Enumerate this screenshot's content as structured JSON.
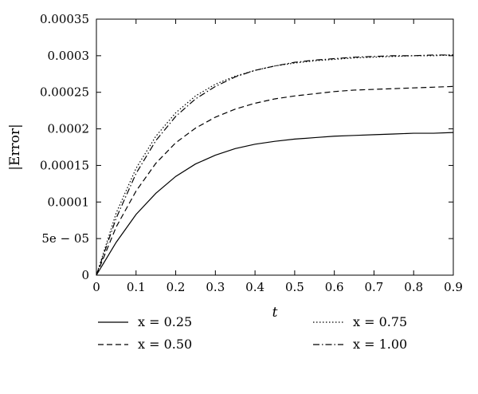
{
  "chart_data": {
    "type": "line",
    "title": "",
    "xlabel": "t",
    "ylabel": "|Error|",
    "xlim": [
      0,
      0.9
    ],
    "ylim": [
      0,
      0.00035
    ],
    "grid": false,
    "legend_position": "bottom",
    "x_ticks": [
      0,
      0.1,
      0.2,
      0.3,
      0.4,
      0.5,
      0.6,
      0.7,
      0.8,
      0.9
    ],
    "x_tick_labels": [
      "0",
      "0.1",
      "0.2",
      "0.3",
      "0.4",
      "0.5",
      "0.6",
      "0.7",
      "0.8",
      "0.9"
    ],
    "y_ticks": [
      0,
      5e-05,
      0.0001,
      0.00015,
      0.0002,
      0.00025,
      0.0003,
      0.00035
    ],
    "y_tick_labels": [
      "0",
      "5e − 05",
      "0.0001",
      "0.00015",
      "0.0002",
      "0.00025",
      "0.0003",
      "0.00035"
    ],
    "x": [
      0,
      0.05,
      0.1,
      0.15,
      0.2,
      0.25,
      0.3,
      0.35,
      0.4,
      0.45,
      0.5,
      0.55,
      0.6,
      0.65,
      0.7,
      0.75,
      0.8,
      0.85,
      0.9
    ],
    "series": [
      {
        "name": "x = 0.25",
        "style": "solid",
        "values": [
          0,
          4.5e-05,
          8.3e-05,
          0.000112,
          0.000135,
          0.000152,
          0.000164,
          0.000173,
          0.000179,
          0.000183,
          0.000186,
          0.000188,
          0.00019,
          0.000191,
          0.000192,
          0.000193,
          0.000194,
          0.000194,
          0.000195
        ]
      },
      {
        "name": "x = 0.50",
        "style": "dashed",
        "values": [
          0,
          6.6e-05,
          0.000115,
          0.000153,
          0.000181,
          0.000201,
          0.000216,
          0.000227,
          0.000235,
          0.000241,
          0.000245,
          0.000248,
          0.000251,
          0.000253,
          0.000254,
          0.000255,
          0.000256,
          0.000257,
          0.000258
        ]
      },
      {
        "name": "x = 0.75",
        "style": "dotted",
        "values": [
          0,
          8.5e-05,
          0.000146,
          0.00019,
          0.000222,
          0.000245,
          0.000261,
          0.000272,
          0.00028,
          0.000286,
          0.00029,
          0.000293,
          0.000295,
          0.000297,
          0.000298,
          0.000299,
          0.0003,
          0.0003,
          0.000301
        ]
      },
      {
        "name": "x = 1.00",
        "style": "dashdot",
        "values": [
          0,
          7.8e-05,
          0.000139,
          0.000184,
          0.000217,
          0.000241,
          0.000258,
          0.000271,
          0.00028,
          0.000286,
          0.000291,
          0.000294,
          0.000296,
          0.000298,
          0.000299,
          0.0003,
          0.0003,
          0.000301,
          0.000301
        ]
      }
    ]
  }
}
